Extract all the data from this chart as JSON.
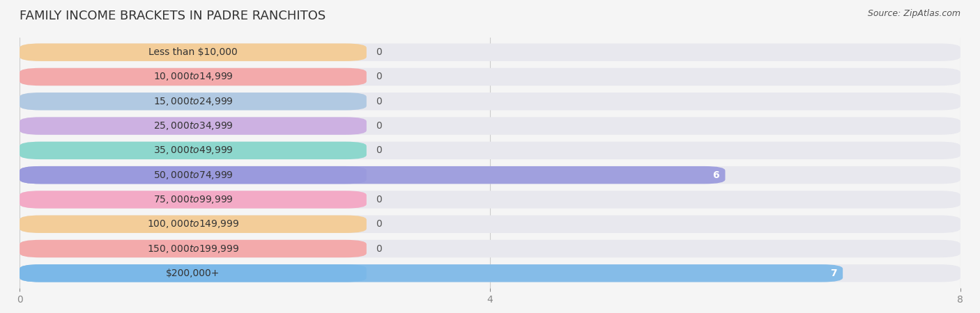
{
  "title": "FAMILY INCOME BRACKETS IN PADRE RANCHITOS",
  "source": "Source: ZipAtlas.com",
  "categories": [
    "Less than $10,000",
    "$10,000 to $14,999",
    "$15,000 to $24,999",
    "$25,000 to $34,999",
    "$35,000 to $49,999",
    "$50,000 to $74,999",
    "$75,000 to $99,999",
    "$100,000 to $149,999",
    "$150,000 to $199,999",
    "$200,000+"
  ],
  "values": [
    0,
    0,
    0,
    0,
    0,
    6,
    0,
    0,
    0,
    7
  ],
  "bar_colors": [
    "#f5c98a",
    "#f5a0a0",
    "#a8c4e0",
    "#c9a8e0",
    "#7dd4c8",
    "#9999dd",
    "#f5a0c0",
    "#f5c98a",
    "#f5a0a0",
    "#7ab8e8"
  ],
  "label_colors": [
    "#f5c98a",
    "#f5a0a0",
    "#a8c4e0",
    "#c9a8e0",
    "#7dd4c8",
    "#9999dd",
    "#f5a0c0",
    "#f5c98a",
    "#f5a0a0",
    "#7ab8e8"
  ],
  "xlim": [
    0,
    8
  ],
  "background_color": "#f5f5f5",
  "bar_background_color": "#e8e8ee",
  "title_fontsize": 13,
  "source_fontsize": 9,
  "tick_fontsize": 10,
  "label_fontsize": 10
}
